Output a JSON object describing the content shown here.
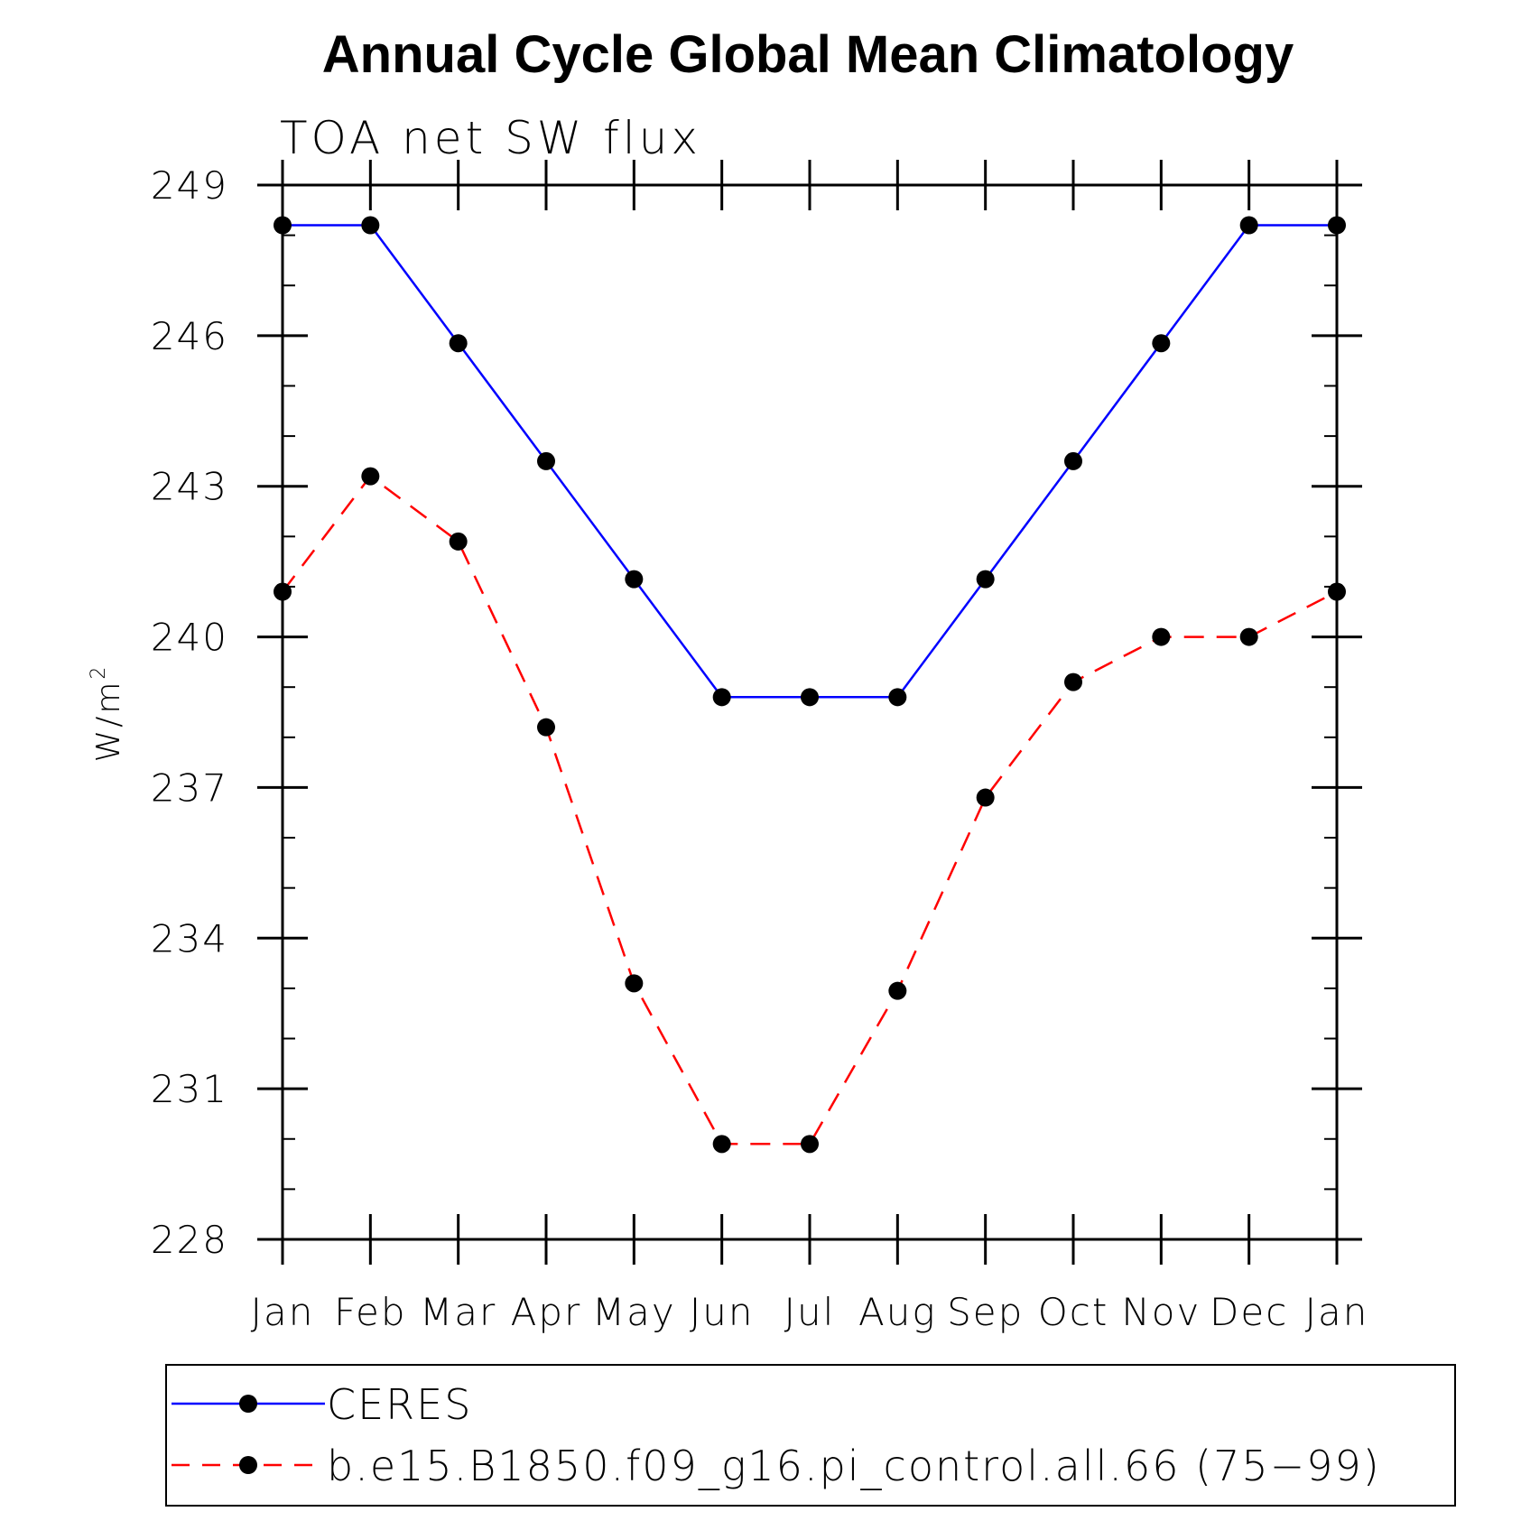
{
  "chart_data": {
    "type": "line",
    "title": "Annual Cycle Global Mean Climatology",
    "subtitle": "TOA net SW flux",
    "ylabel": "W/m",
    "ylabel_sup": "2",
    "categories": [
      "Jan",
      "Feb",
      "Mar",
      "Apr",
      "May",
      "Jun",
      "Jul",
      "Aug",
      "Sep",
      "Oct",
      "Nov",
      "Dec",
      "Jan"
    ],
    "ylim": [
      228,
      249
    ],
    "yticks": [
      "228",
      "231",
      "234",
      "237",
      "240",
      "243",
      "246",
      "249"
    ],
    "series": [
      {
        "name": "CERES",
        "color": "#0000ff",
        "dash": "solid",
        "values": [
          248.2,
          248.2,
          245.85,
          243.5,
          241.15,
          238.8,
          238.8,
          238.8,
          241.15,
          243.5,
          245.85,
          248.2,
          248.2
        ]
      },
      {
        "name": "b.e15.B1850.f09_g16.pi_control.all.66 (75−99)",
        "color": "#ff0000",
        "dash": "dashed",
        "values": [
          240.9,
          243.2,
          241.9,
          238.2,
          233.1,
          229.9,
          229.9,
          232.95,
          236.8,
          239.1,
          240.0,
          240.0,
          240.9
        ]
      }
    ],
    "marker_color": "#000000",
    "legend_position": "bottom"
  }
}
